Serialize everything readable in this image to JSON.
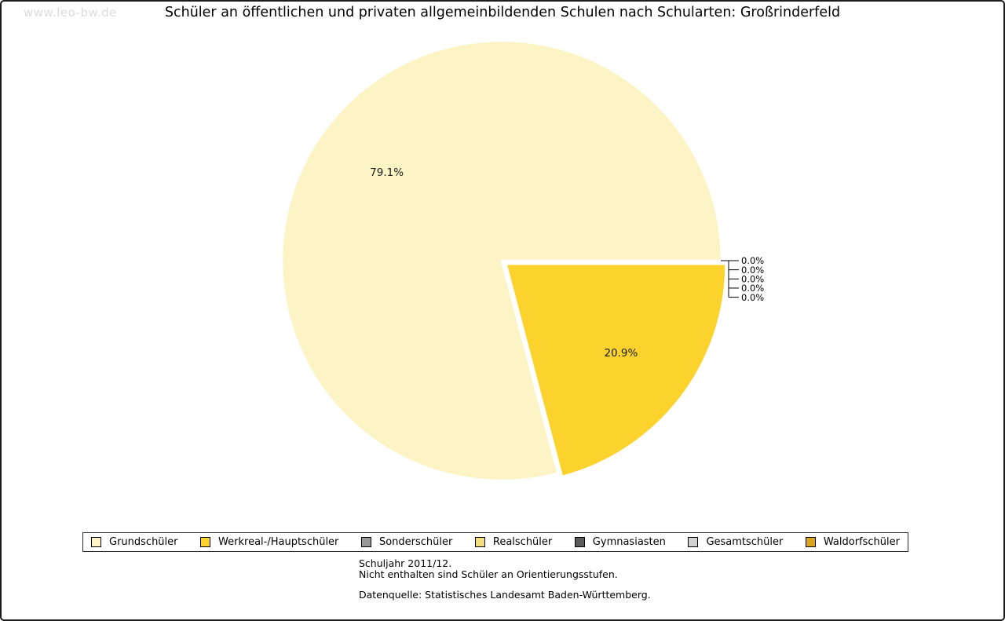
{
  "watermark": "www.leo-bw.de",
  "title": "Schüler an öffentlichen und privaten allgemeinbildenden Schulen nach Schularten: Großrinderfeld",
  "footer": {
    "line1": "Schuljahr 2011/12.",
    "line2": "Nicht enthalten sind Schüler an Orientierungsstufen.",
    "line3": "Datenquelle: Statistisches Landesamt Baden-Württemberg."
  },
  "chart_data": {
    "type": "pie",
    "title": "Schüler an öffentlichen und privaten allgemeinbildenden Schulen nach Schularten: Großrinderfeld",
    "categories": [
      "Grundschüler",
      "Werkreal-/Hauptschüler",
      "Sonderschüler",
      "Realschüler",
      "Gymnasiasten",
      "Gesamtschüler",
      "Waldorfschüler"
    ],
    "values": [
      79.1,
      20.9,
      0.0,
      0.0,
      0.0,
      0.0,
      0.0
    ],
    "labels": [
      "79.1%",
      "20.9%",
      "0.0%",
      "0.0%",
      "0.0%",
      "0.0%",
      "0.0%"
    ],
    "colors": [
      "#FCF4C4",
      "#FBD32C",
      "#999999",
      "#F2E07E",
      "#5A5A5A",
      "#D2D2D2",
      "#D8A521"
    ],
    "slice_border_color": "#FFFFFF",
    "legend_position": "bottom",
    "start_angle_deg": 0,
    "direction": "counterclockwise",
    "exploded_slice": "Werkreal-/Hauptschüler",
    "zero_labels_position": "right-bracket"
  }
}
